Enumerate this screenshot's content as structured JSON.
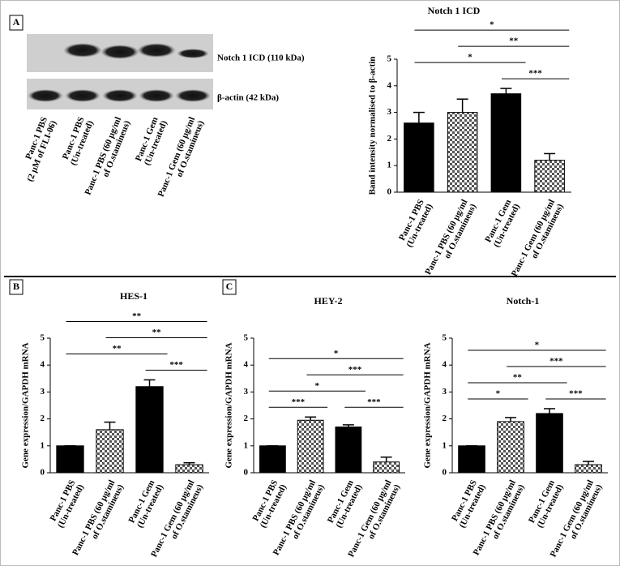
{
  "panel_labels": [
    "A",
    "B",
    "C"
  ],
  "blot": {
    "bands": [
      "Notch 1 ICD (110 kDa)",
      "β-actin (42 kDa)"
    ],
    "lanes": [
      [
        "Panc-1 PBS",
        "(2 µM of FLI-06)"
      ],
      [
        "Panc-1 PBS",
        "(Un-treated)"
      ],
      [
        "Panc-1 PBS (60 µg/ml",
        "of O.stamineus)"
      ],
      [
        "Panc-1 Gem",
        "(Un-treated)"
      ],
      [
        "Panc-1 Gem (60 µg/ml",
        "of O.stamineus)"
      ]
    ]
  },
  "chart_data": [
    {
      "type": "bar",
      "title": "Notch 1 ICD",
      "y_label": "Band intensity normalised to β-actin",
      "categories": [
        [
          "Panc-1 PBS",
          "(Un-treated)"
        ],
        [
          "Panc-1 PBS (60 µg/ml",
          "of O.stamineus)"
        ],
        [
          "Panc-1 Gem",
          "(Un-treated)"
        ],
        [
          "Panc-1 Gem (60 µg/ml",
          "of O.stamineus)"
        ]
      ],
      "values": [
        2.6,
        3.0,
        3.7,
        1.2
      ],
      "errors": [
        0.4,
        0.5,
        0.2,
        0.25
      ],
      "color": "#000000",
      "fills": [
        "solid",
        "checker",
        "solid",
        "checker"
      ],
      "ylim": [
        0,
        5
      ],
      "yticks": [
        0,
        1,
        2,
        3,
        4,
        5
      ],
      "significance": [
        {
          "from": 2,
          "to": 3,
          "label": "***"
        },
        {
          "from": 0,
          "to": 2,
          "label": "*"
        },
        {
          "from": 1,
          "to": 3,
          "label": "**"
        },
        {
          "from": 0,
          "to": 3,
          "label": "*"
        }
      ]
    },
    {
      "type": "bar",
      "title": "HES-1",
      "y_label": "Gene expression/GAPDH mRNA",
      "categories": [
        [
          "Panc-1 PBS",
          "(Un-treated)"
        ],
        [
          "Panc-1 PBS (60 µg/ml",
          "of O.stamineus)"
        ],
        [
          "Panc-1 Gem",
          "(Un-treated)"
        ],
        [
          "Panc-1 Gem (60 µg/ml",
          "of O.stamineus)"
        ]
      ],
      "values": [
        1.0,
        1.6,
        3.2,
        0.3
      ],
      "errors": [
        0,
        0.28,
        0.25,
        0.07
      ],
      "color": "#000000",
      "fills": [
        "solid",
        "checker",
        "solid",
        "checker"
      ],
      "ylim": [
        0,
        5
      ],
      "yticks": [
        0,
        1,
        2,
        3,
        4,
        5
      ],
      "significance": [
        {
          "from": 2,
          "to": 3,
          "label": "***"
        },
        {
          "from": 0,
          "to": 2,
          "label": "**"
        },
        {
          "from": 1,
          "to": 3,
          "label": "**"
        },
        {
          "from": 0,
          "to": 3,
          "label": "**"
        }
      ]
    },
    {
      "type": "bar",
      "title": "HEY-2",
      "y_label": "Gene expression/GAPDH mRNA",
      "categories": [
        [
          "Panc-1 PBS",
          "(Un-treated)"
        ],
        [
          "Panc-1 PBS (60 µg/ml",
          "of O.stamineus)"
        ],
        [
          "Panc-1 Gem",
          "(Un-treated)"
        ],
        [
          "Panc-1 Gem (60 µg/ml",
          "of O.stamineus)"
        ]
      ],
      "values": [
        1.0,
        1.95,
        1.7,
        0.4
      ],
      "errors": [
        0,
        0.12,
        0.08,
        0.18
      ],
      "color": "#000000",
      "fills": [
        "solid",
        "checker",
        "solid",
        "checker"
      ],
      "ylim": [
        0,
        5
      ],
      "yticks": [
        0,
        1,
        2,
        3,
        4,
        5
      ],
      "significance": [
        {
          "from": 0,
          "to": 1,
          "label": "***"
        },
        {
          "from": 2,
          "to": 3,
          "label": "***"
        },
        {
          "from": 0,
          "to": 2,
          "label": "*"
        },
        {
          "from": 1,
          "to": 3,
          "label": "***"
        },
        {
          "from": 0,
          "to": 3,
          "label": "*"
        }
      ]
    },
    {
      "type": "bar",
      "title": "Notch-1",
      "y_label": "Gene expression/GAPDH mRNA",
      "categories": [
        [
          "Panc-1 PBS",
          "(Un-treated)"
        ],
        [
          "Panc-1 PBS (60 µg/ml",
          "of O.stamineus)"
        ],
        [
          "Panc-1 Gem",
          "(Un-treated)"
        ],
        [
          "Panc-1 Gem (60 µg/ml",
          "of O.stamineus)"
        ]
      ],
      "values": [
        1.0,
        1.9,
        2.2,
        0.3
      ],
      "errors": [
        0,
        0.15,
        0.18,
        0.12
      ],
      "color": "#000000",
      "fills": [
        "solid",
        "checker",
        "solid",
        "checker"
      ],
      "ylim": [
        0,
        5
      ],
      "yticks": [
        0,
        1,
        2,
        3,
        4,
        5
      ],
      "significance": [
        {
          "from": 0,
          "to": 1,
          "label": "*"
        },
        {
          "from": 2,
          "to": 3,
          "label": "***"
        },
        {
          "from": 0,
          "to": 2,
          "label": "**"
        },
        {
          "from": 1,
          "to": 3,
          "label": "***"
        },
        {
          "from": 0,
          "to": 3,
          "label": "*"
        }
      ]
    }
  ]
}
